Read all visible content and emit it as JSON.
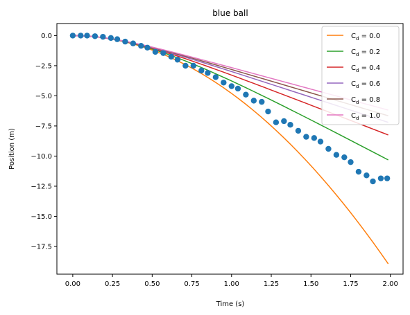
{
  "chart_data": {
    "type": "line",
    "title": "blue ball",
    "xlabel": "Time (s)",
    "ylabel": "Position (m)",
    "xlim": [
      -0.1,
      2.08
    ],
    "ylim": [
      -19.8,
      1.0
    ],
    "xticks": [
      {
        "value": 0.0,
        "label": "0.00"
      },
      {
        "value": 0.25,
        "label": "0.25"
      },
      {
        "value": 0.5,
        "label": "0.50"
      },
      {
        "value": 0.75,
        "label": "0.75"
      },
      {
        "value": 1.0,
        "label": "1.00"
      },
      {
        "value": 1.25,
        "label": "1.25"
      },
      {
        "value": 1.5,
        "label": "1.50"
      },
      {
        "value": 1.75,
        "label": "1.75"
      },
      {
        "value": 2.0,
        "label": "2.00"
      }
    ],
    "yticks": [
      {
        "value": 0.0,
        "label": "0.0"
      },
      {
        "value": -2.5,
        "label": "−2.5"
      },
      {
        "value": -5.0,
        "label": "−5.0"
      },
      {
        "value": -7.5,
        "label": "−7.5"
      },
      {
        "value": -10.0,
        "label": "−10.0"
      },
      {
        "value": -12.5,
        "label": "−12.5"
      },
      {
        "value": -15.0,
        "label": "−15.0"
      },
      {
        "value": -17.5,
        "label": "−17.5"
      }
    ],
    "grid": false,
    "legend_position": "top-right",
    "gravity": 9.6,
    "time_step": 0.0473,
    "samples": 43,
    "lines": [
      {
        "label_main": "C",
        "label_sub": "d",
        "label_rest": " = 0.0",
        "k": 0.0,
        "color": "#ff7f0e"
      },
      {
        "label_main": "C",
        "label_sub": "d",
        "label_rest": " = 0.2",
        "k": 0.2,
        "color": "#2ca02c"
      },
      {
        "label_main": "C",
        "label_sub": "d",
        "label_rest": " = 0.4",
        "k": 0.37,
        "color": "#d62728"
      },
      {
        "label_main": "C",
        "label_sub": "d",
        "label_rest": " = 0.6",
        "k": 0.52,
        "color": "#9467bd"
      },
      {
        "label_main": "C",
        "label_sub": "d",
        "label_rest": " = 0.8",
        "k": 0.63,
        "color": "#8c564b"
      },
      {
        "label_main": "C",
        "label_sub": "d",
        "label_rest": " = 1.0",
        "k": 0.75,
        "color": "#e377c2"
      }
    ],
    "points": {
      "color": "#1f77b4",
      "x": [
        0.0,
        0.05,
        0.09,
        0.14,
        0.19,
        0.24,
        0.28,
        0.33,
        0.38,
        0.43,
        0.47,
        0.52,
        0.57,
        0.62,
        0.66,
        0.71,
        0.76,
        0.81,
        0.85,
        0.9,
        0.95,
        1.0,
        1.04,
        1.09,
        1.14,
        1.19,
        1.23,
        1.28,
        1.33,
        1.37,
        1.42,
        1.47,
        1.52,
        1.56,
        1.61,
        1.66,
        1.71,
        1.75,
        1.8,
        1.85,
        1.89,
        1.94,
        1.98
      ],
      "y": [
        0.0,
        0.0,
        0.0,
        -0.05,
        -0.1,
        -0.2,
        -0.3,
        -0.5,
        -0.65,
        -0.85,
        -1.0,
        -1.35,
        -1.45,
        -1.75,
        -2.0,
        -2.5,
        -2.5,
        -2.9,
        -3.1,
        -3.45,
        -3.9,
        -4.2,
        -4.4,
        -4.9,
        -5.4,
        -5.5,
        -6.3,
        -7.2,
        -7.1,
        -7.4,
        -7.9,
        -8.4,
        -8.5,
        -8.8,
        -9.4,
        -9.9,
        -10.1,
        -10.5,
        -11.3,
        -11.6,
        -12.1,
        -11.85,
        -11.85
      ]
    }
  }
}
